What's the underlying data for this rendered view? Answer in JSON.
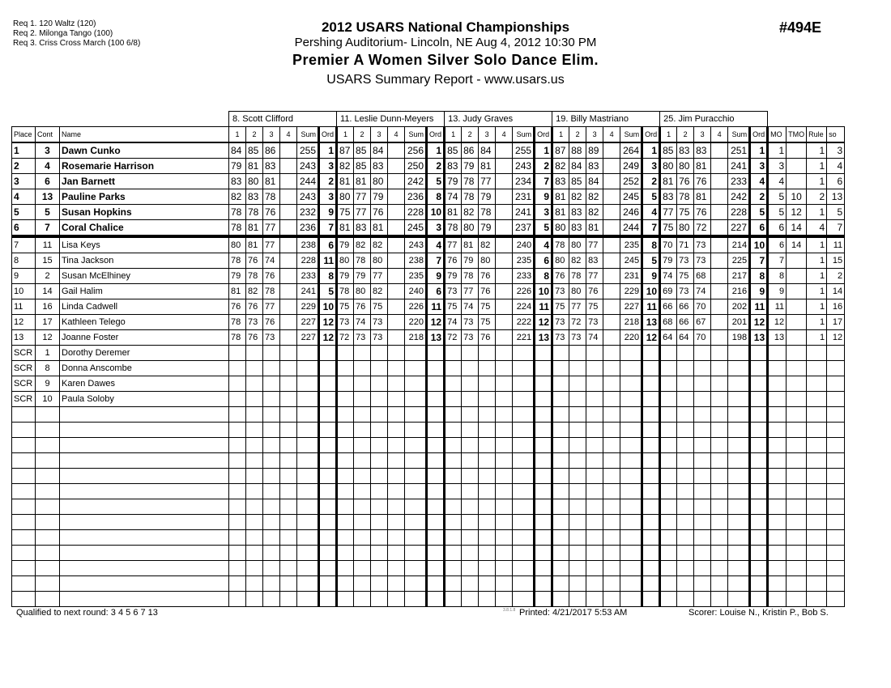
{
  "requirements": [
    "Req  1.  120 Waltz (120)",
    "Req  2.  Milonga Tango (100)",
    "Req  3.  Criss Cross March (100 6/8)"
  ],
  "header": {
    "title": "2012 USARS National Championships",
    "venue": "Pershing Auditorium- Lincoln, NE  Aug 4, 2012  10:30 PM",
    "event": "Premier A Women Silver Solo Dance Elim.",
    "report": "USARS Summary Report - www.usars.us",
    "event_number": "#494E"
  },
  "columns": {
    "place": "Place",
    "cont": "Cont",
    "name": "Name",
    "marks": [
      "1",
      "2",
      "3",
      "4"
    ],
    "sum": "Sum",
    "ord": "Ord",
    "mo": "MO",
    "tmo": "TMO",
    "rule": "Rule",
    "so": "so"
  },
  "judges": [
    "8.  Scott Clifford",
    "11.  Leslie Dunn-Meyers",
    "13.  Judy Graves",
    "19.  Billy Mastriano",
    "25.  Jim Puracchio"
  ],
  "qualified_count": 6,
  "rows": [
    {
      "place": "1",
      "cont": "3",
      "name": "Dawn Cunko",
      "scores": [
        [
          84,
          85,
          86,
          255,
          1
        ],
        [
          87,
          85,
          84,
          256,
          1
        ],
        [
          85,
          86,
          84,
          255,
          1
        ],
        [
          87,
          88,
          89,
          264,
          1
        ],
        [
          85,
          83,
          83,
          251,
          1
        ]
      ],
      "mo": "1",
      "tmo": "",
      "rule": "1",
      "so": "3"
    },
    {
      "place": "2",
      "cont": "4",
      "name": "Rosemarie Harrison",
      "scores": [
        [
          79,
          81,
          83,
          243,
          3
        ],
        [
          82,
          85,
          83,
          250,
          2
        ],
        [
          83,
          79,
          81,
          243,
          2
        ],
        [
          82,
          84,
          83,
          249,
          3
        ],
        [
          80,
          80,
          81,
          241,
          3
        ]
      ],
      "mo": "3",
      "tmo": "",
      "rule": "1",
      "so": "4"
    },
    {
      "place": "3",
      "cont": "6",
      "name": "Jan Barnett",
      "scores": [
        [
          83,
          80,
          81,
          244,
          2
        ],
        [
          81,
          81,
          80,
          242,
          5
        ],
        [
          79,
          78,
          77,
          234,
          7
        ],
        [
          83,
          85,
          84,
          252,
          2
        ],
        [
          81,
          76,
          76,
          233,
          4
        ]
      ],
      "mo": "4",
      "tmo": "",
      "rule": "1",
      "so": "6"
    },
    {
      "place": "4",
      "cont": "13",
      "name": "Pauline Parks",
      "scores": [
        [
          82,
          83,
          78,
          243,
          3
        ],
        [
          80,
          77,
          79,
          236,
          8
        ],
        [
          74,
          78,
          79,
          231,
          9
        ],
        [
          81,
          82,
          82,
          245,
          5
        ],
        [
          83,
          78,
          81,
          242,
          2
        ]
      ],
      "mo": "5",
      "tmo": "10",
      "rule": "2",
      "so": "13"
    },
    {
      "place": "5",
      "cont": "5",
      "name": "Susan Hopkins",
      "scores": [
        [
          78,
          78,
          76,
          232,
          9
        ],
        [
          75,
          77,
          76,
          228,
          10
        ],
        [
          81,
          82,
          78,
          241,
          3
        ],
        [
          81,
          83,
          82,
          246,
          4
        ],
        [
          77,
          75,
          76,
          228,
          5
        ]
      ],
      "mo": "5",
      "tmo": "12",
      "rule": "1",
      "so": "5"
    },
    {
      "place": "6",
      "cont": "7",
      "name": "Coral Chalice",
      "scores": [
        [
          78,
          81,
          77,
          236,
          7
        ],
        [
          81,
          83,
          81,
          245,
          3
        ],
        [
          78,
          80,
          79,
          237,
          5
        ],
        [
          80,
          83,
          81,
          244,
          7
        ],
        [
          75,
          80,
          72,
          227,
          6
        ]
      ],
      "mo": "6",
      "tmo": "14",
      "rule": "4",
      "so": "7"
    },
    {
      "place": "7",
      "cont": "11",
      "name": "Lisa Keys",
      "scores": [
        [
          80,
          81,
          77,
          238,
          6
        ],
        [
          79,
          82,
          82,
          243,
          4
        ],
        [
          77,
          81,
          82,
          240,
          4
        ],
        [
          78,
          80,
          77,
          235,
          8
        ],
        [
          70,
          71,
          73,
          214,
          10
        ]
      ],
      "mo": "6",
      "tmo": "14",
      "rule": "1",
      "so": "11"
    },
    {
      "place": "8",
      "cont": "15",
      "name": "Tina Jackson",
      "scores": [
        [
          78,
          76,
          74,
          228,
          11
        ],
        [
          80,
          78,
          80,
          238,
          7
        ],
        [
          76,
          79,
          80,
          235,
          6
        ],
        [
          80,
          82,
          83,
          245,
          5
        ],
        [
          79,
          73,
          73,
          225,
          7
        ]
      ],
      "mo": "7",
      "tmo": "",
      "rule": "1",
      "so": "15"
    },
    {
      "place": "9",
      "cont": "2",
      "name": "Susan McElhiney",
      "scores": [
        [
          79,
          78,
          76,
          233,
          8
        ],
        [
          79,
          79,
          77,
          235,
          9
        ],
        [
          79,
          78,
          76,
          233,
          8
        ],
        [
          76,
          78,
          77,
          231,
          9
        ],
        [
          74,
          75,
          68,
          217,
          8
        ]
      ],
      "mo": "8",
      "tmo": "",
      "rule": "1",
      "so": "2"
    },
    {
      "place": "10",
      "cont": "14",
      "name": "Gail Halim",
      "scores": [
        [
          81,
          82,
          78,
          241,
          5
        ],
        [
          78,
          80,
          82,
          240,
          6
        ],
        [
          73,
          77,
          76,
          226,
          10
        ],
        [
          73,
          80,
          76,
          229,
          10
        ],
        [
          69,
          73,
          74,
          216,
          9
        ]
      ],
      "mo": "9",
      "tmo": "",
      "rule": "1",
      "so": "14"
    },
    {
      "place": "11",
      "cont": "16",
      "name": "Linda Cadwell",
      "scores": [
        [
          76,
          76,
          77,
          229,
          10
        ],
        [
          75,
          76,
          75,
          226,
          11
        ],
        [
          75,
          74,
          75,
          224,
          11
        ],
        [
          75,
          77,
          75,
          227,
          11
        ],
        [
          66,
          66,
          70,
          202,
          11
        ]
      ],
      "mo": "11",
      "tmo": "",
      "rule": "1",
      "so": "16"
    },
    {
      "place": "12",
      "cont": "17",
      "name": "Kathleen Telego",
      "scores": [
        [
          78,
          73,
          76,
          227,
          12
        ],
        [
          73,
          74,
          73,
          220,
          12
        ],
        [
          74,
          73,
          75,
          222,
          12
        ],
        [
          73,
          72,
          73,
          218,
          13
        ],
        [
          68,
          66,
          67,
          201,
          12
        ]
      ],
      "mo": "12",
      "tmo": "",
      "rule": "1",
      "so": "17"
    },
    {
      "place": "13",
      "cont": "12",
      "name": "Joanne Foster",
      "scores": [
        [
          78,
          76,
          73,
          227,
          12
        ],
        [
          72,
          73,
          73,
          218,
          13
        ],
        [
          72,
          73,
          76,
          221,
          13
        ],
        [
          73,
          73,
          74,
          220,
          12
        ],
        [
          64,
          64,
          70,
          198,
          13
        ]
      ],
      "mo": "13",
      "tmo": "",
      "rule": "1",
      "so": "12"
    },
    {
      "place": "SCR",
      "cont": "1",
      "name": "Dorothy Deremer"
    },
    {
      "place": "SCR",
      "cont": "8",
      "name": "Donna Anscombe"
    },
    {
      "place": "SCR",
      "cont": "9",
      "name": "Karen Dawes"
    },
    {
      "place": "SCR",
      "cont": "10",
      "name": "Paula Soloby"
    }
  ],
  "blank_rows": 13,
  "footer": {
    "qualified": "Qualified to next round:   3 4 5 6 7 13",
    "version": "3.8.1.8",
    "printed": "Printed:  4/21/2017  5:53 AM",
    "scorer": "Scorer:   Louise N., Kristin P., Bob S."
  }
}
